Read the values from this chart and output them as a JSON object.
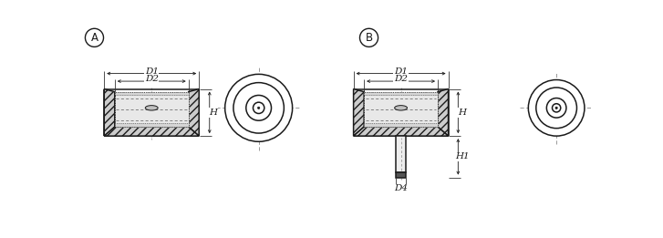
{
  "bg_color": "#ffffff",
  "line_color": "#1a1a1a",
  "label_A": "A",
  "label_B": "B",
  "dim_D1": "D1",
  "dim_D2": "D2",
  "dim_H": "H",
  "dim_H1": "H1",
  "dim_D4": "D4",
  "font_size_dim": 7.5
}
